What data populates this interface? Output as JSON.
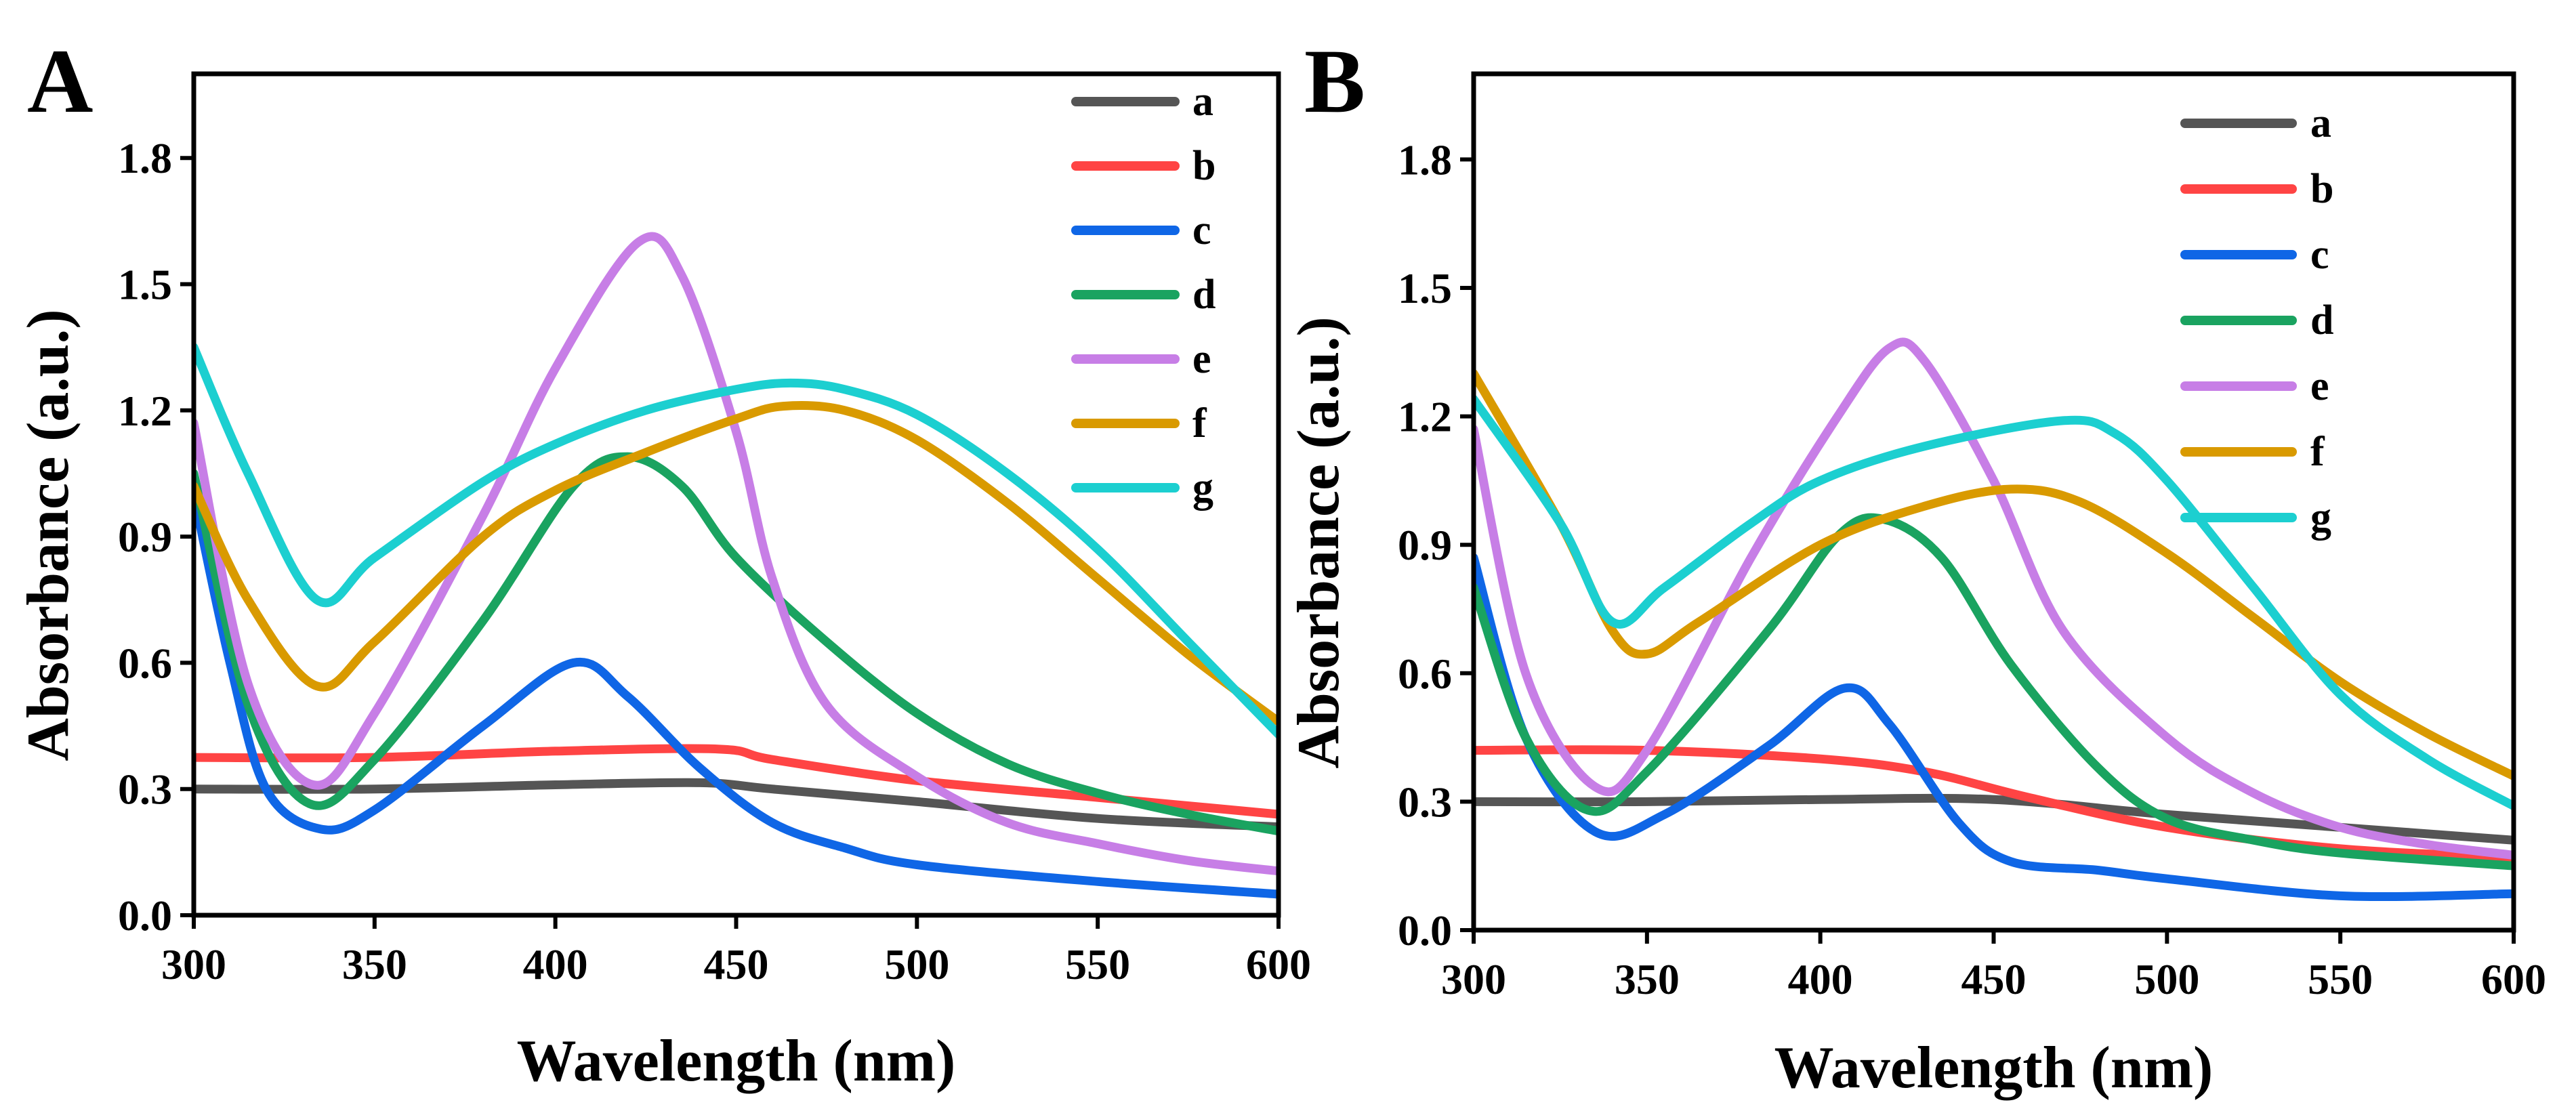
{
  "chart_data": [
    {
      "panel_label": "A",
      "type": "line",
      "xlabel": "Wavelength (nm)",
      "ylabel": "Absorbance (a.u.)",
      "xlim": [
        300,
        600
      ],
      "ylim": [
        0,
        2.0
      ],
      "xticks": [
        300,
        350,
        400,
        450,
        500,
        550,
        600
      ],
      "yticks": [
        "0.0",
        "0.3",
        "0.6",
        "0.9",
        "1.2",
        "1.5",
        "1.8"
      ],
      "grid": false,
      "legend_position": "top-right",
      "series": [
        {
          "name": "a",
          "color": "#555555",
          "x": [
            300,
            350,
            400,
            440,
            460,
            500,
            550,
            600
          ],
          "y": [
            0.3,
            0.3,
            0.31,
            0.315,
            0.3,
            0.27,
            0.23,
            0.21
          ]
        },
        {
          "name": "b",
          "color": "#ff4444",
          "x": [
            300,
            350,
            400,
            445,
            460,
            500,
            550,
            600
          ],
          "y": [
            0.375,
            0.375,
            0.39,
            0.395,
            0.37,
            0.32,
            0.28,
            0.24
          ]
        },
        {
          "name": "c",
          "color": "#0f66e6",
          "x": [
            300,
            310,
            320,
            335,
            350,
            380,
            405,
            420,
            440,
            460,
            480,
            500,
            550,
            600
          ],
          "y": [
            1.0,
            0.6,
            0.3,
            0.205,
            0.25,
            0.45,
            0.6,
            0.52,
            0.35,
            0.22,
            0.16,
            0.12,
            0.08,
            0.05
          ]
        },
        {
          "name": "d",
          "color": "#1aa360",
          "x": [
            300,
            315,
            332,
            350,
            380,
            405,
            420,
            435,
            450,
            475,
            500,
            525,
            550,
            575,
            600
          ],
          "y": [
            1.05,
            0.5,
            0.265,
            0.37,
            0.7,
            1.02,
            1.09,
            1.02,
            0.85,
            0.65,
            0.48,
            0.36,
            0.29,
            0.24,
            0.2
          ]
        },
        {
          "name": "e",
          "color": "#c77ee6",
          "x": [
            300,
            315,
            333,
            350,
            380,
            400,
            423,
            435,
            450,
            460,
            475,
            500,
            525,
            550,
            575,
            600
          ],
          "y": [
            1.17,
            0.55,
            0.31,
            0.48,
            0.95,
            1.3,
            1.6,
            1.52,
            1.15,
            0.8,
            0.5,
            0.33,
            0.22,
            0.17,
            0.13,
            0.105
          ]
        },
        {
          "name": "f",
          "color": "#d99a00",
          "x": [
            300,
            315,
            334,
            350,
            380,
            400,
            425,
            450,
            463,
            480,
            500,
            525,
            550,
            575,
            600
          ],
          "y": [
            1.02,
            0.75,
            0.545,
            0.65,
            0.9,
            1.01,
            1.1,
            1.18,
            1.21,
            1.2,
            1.13,
            0.98,
            0.8,
            0.62,
            0.46
          ]
        },
        {
          "name": "g",
          "color": "#1ccfd0",
          "x": [
            300,
            315,
            334,
            350,
            380,
            400,
            425,
            450,
            465,
            480,
            500,
            525,
            550,
            575,
            600
          ],
          "y": [
            1.35,
            1.05,
            0.75,
            0.85,
            1.03,
            1.12,
            1.2,
            1.25,
            1.265,
            1.25,
            1.19,
            1.05,
            0.87,
            0.65,
            0.43
          ]
        }
      ]
    },
    {
      "panel_label": "B",
      "type": "line",
      "xlabel": "Wavelength (nm)",
      "ylabel": "Absorbance (a.u.)",
      "xlim": [
        300,
        600
      ],
      "ylim": [
        0,
        2.0
      ],
      "xticks": [
        300,
        350,
        400,
        450,
        500,
        550,
        600
      ],
      "yticks": [
        "0.0",
        "0.3",
        "0.6",
        "0.9",
        "1.2",
        "1.5",
        "1.8"
      ],
      "grid": false,
      "legend_position": "top-right",
      "series": [
        {
          "name": "a",
          "color": "#555555",
          "x": [
            300,
            350,
            400,
            450,
            500,
            550,
            600
          ],
          "y": [
            0.3,
            0.3,
            0.305,
            0.305,
            0.27,
            0.24,
            0.21
          ]
        },
        {
          "name": "b",
          "color": "#ff4444",
          "x": [
            300,
            350,
            400,
            430,
            460,
            500,
            550,
            600
          ],
          "y": [
            0.42,
            0.42,
            0.4,
            0.37,
            0.31,
            0.24,
            0.19,
            0.17
          ]
        },
        {
          "name": "c",
          "color": "#0f66e6",
          "x": [
            300,
            315,
            335,
            355,
            385,
            407,
            420,
            440,
            455,
            480,
            500,
            550,
            600
          ],
          "y": [
            0.87,
            0.45,
            0.23,
            0.27,
            0.43,
            0.565,
            0.48,
            0.25,
            0.16,
            0.14,
            0.12,
            0.08,
            0.085
          ]
        },
        {
          "name": "d",
          "color": "#1aa360",
          "x": [
            300,
            315,
            333,
            350,
            385,
            405,
            418,
            435,
            455,
            480,
            500,
            525,
            550,
            600
          ],
          "y": [
            0.8,
            0.45,
            0.28,
            0.37,
            0.7,
            0.92,
            0.96,
            0.87,
            0.62,
            0.38,
            0.26,
            0.21,
            0.18,
            0.15
          ]
        },
        {
          "name": "e",
          "color": "#c77ee6",
          "x": [
            300,
            315,
            335,
            350,
            380,
            405,
            420,
            430,
            450,
            470,
            500,
            525,
            550,
            575,
            600
          ],
          "y": [
            1.17,
            0.6,
            0.335,
            0.42,
            0.87,
            1.2,
            1.36,
            1.33,
            1.05,
            0.7,
            0.45,
            0.32,
            0.24,
            0.2,
            0.175
          ]
        },
        {
          "name": "f",
          "color": "#d99a00",
          "x": [
            300,
            325,
            340,
            350,
            365,
            400,
            430,
            455,
            475,
            500,
            525,
            550,
            575,
            600
          ],
          "y": [
            1.3,
            0.95,
            0.7,
            0.645,
            0.72,
            0.9,
            0.99,
            1.03,
            1.0,
            0.88,
            0.73,
            0.58,
            0.46,
            0.36
          ]
        },
        {
          "name": "g",
          "color": "#1ccfd0",
          "x": [
            300,
            325,
            340,
            355,
            380,
            400,
            430,
            470,
            485,
            500,
            525,
            550,
            575,
            600
          ],
          "y": [
            1.24,
            0.95,
            0.72,
            0.8,
            0.95,
            1.05,
            1.13,
            1.19,
            1.16,
            1.05,
            0.8,
            0.55,
            0.4,
            0.29
          ]
        }
      ]
    }
  ]
}
